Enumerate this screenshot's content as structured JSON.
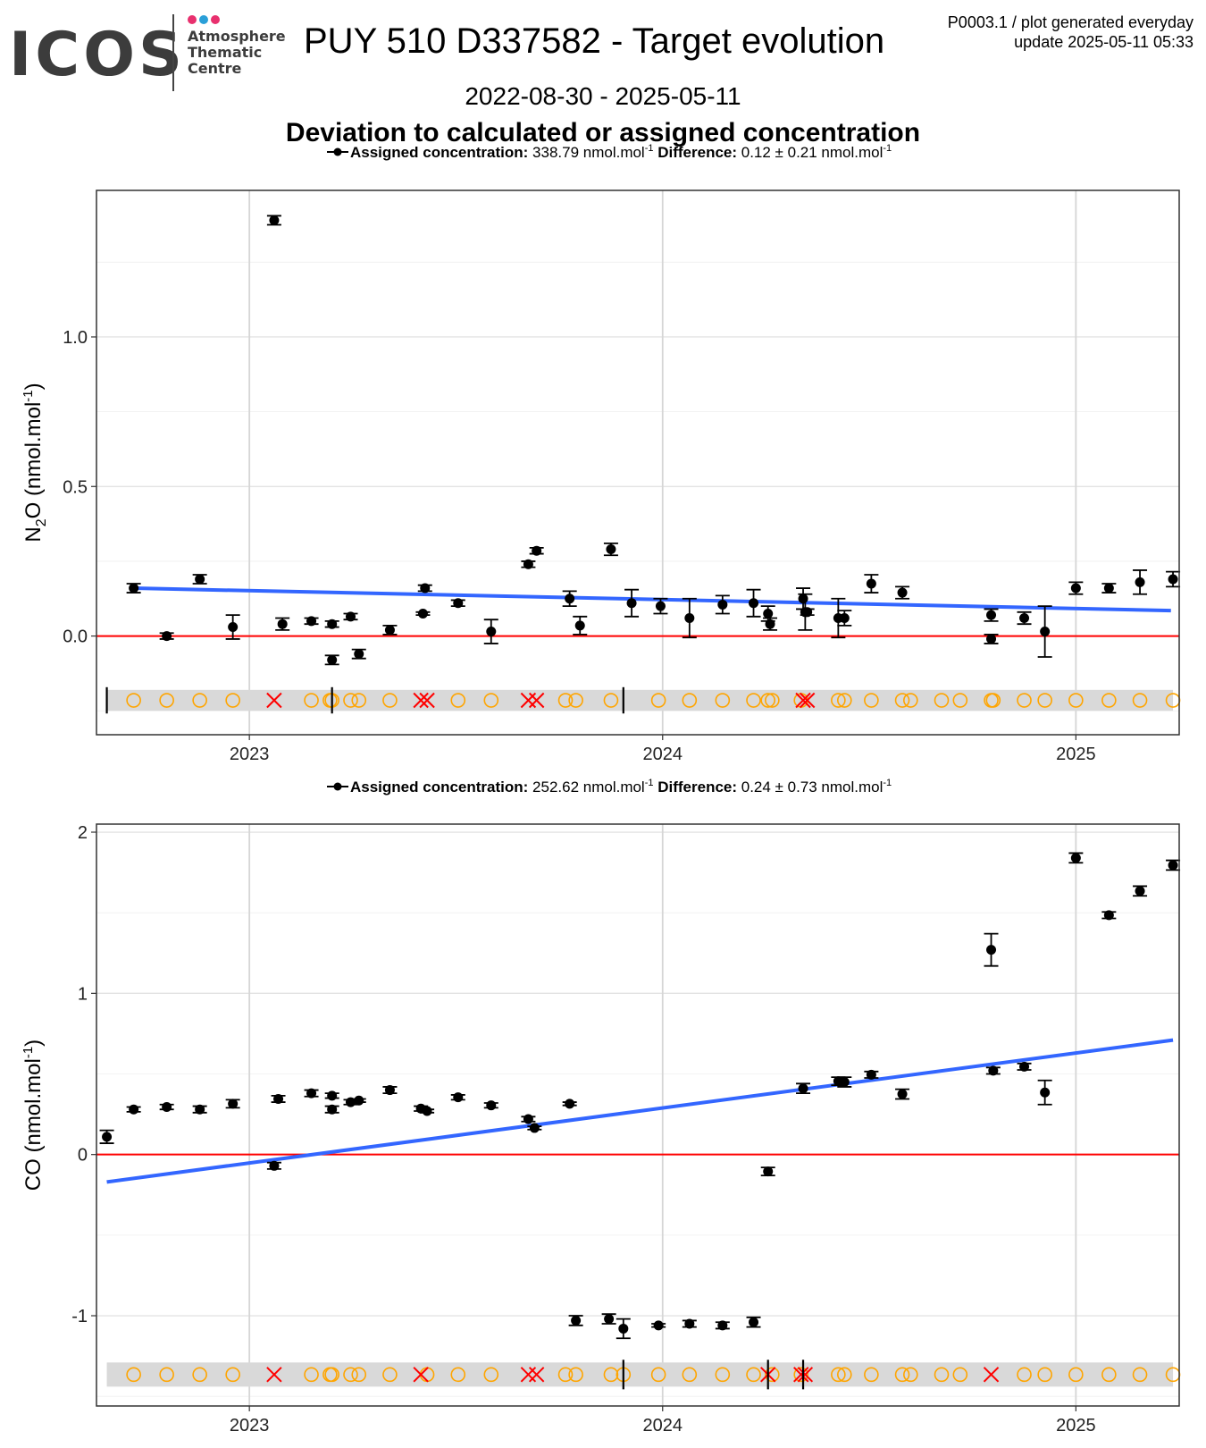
{
  "header": {
    "logo_text": "ICOS",
    "logo_sub": [
      "Atmosphere",
      "Thematic",
      "Centre"
    ],
    "logo_dot_colors": [
      "#e8306e",
      "#2a9fd8",
      "#e8306e"
    ],
    "title": "PUY 510 D337582 - Target evolution",
    "plot_id": "P0003.1 / plot generated everyday",
    "update": "update  2025-05-11 05:33",
    "date_range": "2022-08-30 - 2025-05-11",
    "subtitle": "Deviation to calculated or assigned concentration"
  },
  "colors": {
    "trend": "#3366ff",
    "zero_line": "#ff0000",
    "points": "#000000",
    "open_circle": "#ffa500",
    "cross": "#ff0000",
    "band": "#d9d9d9"
  },
  "chart_data": [
    {
      "type": "scatter",
      "species": "N2O",
      "ylabel": "N2O (nmol.mol-1)",
      "legend": {
        "assigned_label": "Assigned concentration:",
        "assigned_value": "338.79 nmol.mol",
        "difference_label": "Difference:",
        "difference_value": "0.12 ± 0.21 nmol.mol"
      },
      "xlim": [
        2022.63,
        2025.25
      ],
      "xticks": [
        2023,
        2024,
        2025
      ],
      "ylim": [
        -0.33,
        1.49
      ],
      "yticks": [
        0.0,
        0.5,
        1.0
      ],
      "grid": true,
      "trend": {
        "x": [
          2022.72,
          2025.23
        ],
        "y": [
          0.16,
          0.085
        ]
      },
      "points": [
        [
          2022.72,
          0.16,
          0.015
        ],
        [
          2022.8,
          0.0,
          0.01
        ],
        [
          2022.88,
          0.19,
          0.015
        ],
        [
          2022.96,
          0.03,
          0.04
        ],
        [
          2023.06,
          1.39,
          0.015
        ],
        [
          2023.08,
          0.04,
          0.02
        ],
        [
          2023.15,
          0.05,
          0.01
        ],
        [
          2023.2,
          0.04,
          0.01
        ],
        [
          2023.2,
          -0.08,
          0.015
        ],
        [
          2023.245,
          0.065,
          0.01
        ],
        [
          2023.265,
          -0.06,
          0.015
        ],
        [
          2023.34,
          0.02,
          0.015
        ],
        [
          2023.42,
          0.075,
          0.005
        ],
        [
          2023.425,
          0.16,
          0.01
        ],
        [
          2023.505,
          0.11,
          0.01
        ],
        [
          2023.585,
          0.015,
          0.04
        ],
        [
          2023.675,
          0.24,
          0.01
        ],
        [
          2023.695,
          0.285,
          0.01
        ],
        [
          2023.775,
          0.125,
          0.025
        ],
        [
          2023.8,
          0.035,
          0.03
        ],
        [
          2023.875,
          0.29,
          0.02
        ],
        [
          2023.925,
          0.11,
          0.045
        ],
        [
          2023.995,
          0.1,
          0.025
        ],
        [
          2024.065,
          0.06,
          0.065
        ],
        [
          2024.145,
          0.105,
          0.03
        ],
        [
          2024.22,
          0.11,
          0.045
        ],
        [
          2024.255,
          0.075,
          0.025
        ],
        [
          2024.26,
          0.04,
          0.02
        ],
        [
          2024.34,
          0.125,
          0.035
        ],
        [
          2024.345,
          0.08,
          0.06
        ],
        [
          2024.35,
          0.08,
          0.01
        ],
        [
          2024.425,
          0.06,
          0.065
        ],
        [
          2024.44,
          0.06,
          0.025
        ],
        [
          2024.505,
          0.175,
          0.03
        ],
        [
          2024.58,
          0.145,
          0.02
        ],
        [
          2024.795,
          0.07,
          0.02
        ],
        [
          2024.795,
          -0.01,
          0.015
        ],
        [
          2024.875,
          0.06,
          0.02
        ],
        [
          2024.925,
          0.015,
          0.085
        ],
        [
          2025.0,
          0.16,
          0.02
        ],
        [
          2025.08,
          0.16,
          0.015
        ],
        [
          2025.155,
          0.18,
          0.04
        ],
        [
          2025.235,
          0.19,
          0.025
        ]
      ],
      "band_y": [
        -0.18,
        -0.25
      ],
      "marker_y": -0.215,
      "circles": [
        2022.72,
        2022.8,
        2022.88,
        2022.96,
        2023.15,
        2023.195,
        2023.2,
        2023.245,
        2023.265,
        2023.34,
        2023.505,
        2023.585,
        2023.765,
        2023.79,
        2023.875,
        2023.99,
        2024.065,
        2024.145,
        2024.22,
        2024.255,
        2024.265,
        2024.335,
        2024.425,
        2024.44,
        2024.505,
        2024.58,
        2024.6,
        2024.675,
        2024.72,
        2024.795,
        2024.8,
        2024.875,
        2024.925,
        2025.0,
        2025.08,
        2025.155,
        2025.235
      ],
      "crosses": [
        2023.06,
        2023.415,
        2023.43,
        2023.675,
        2023.695,
        2024.34,
        2024.35
      ],
      "vlines": [
        2022.655,
        2023.2,
        2023.905
      ]
    },
    {
      "type": "scatter",
      "species": "CO",
      "ylabel": "CO (nmol.mol-1)",
      "legend": {
        "assigned_label": "Assigned concentration:",
        "assigned_value": "252.62 nmol.mol",
        "difference_label": "Difference:",
        "difference_value": "0.24 ± 0.73 nmol.mol"
      },
      "xlim": [
        2022.63,
        2025.25
      ],
      "xticks": [
        2023,
        2024,
        2025
      ],
      "ylim": [
        -1.56,
        2.05
      ],
      "yticks": [
        -1,
        0,
        1,
        2
      ],
      "grid": true,
      "trend": {
        "x": [
          2022.655,
          2025.235
        ],
        "y": [
          -0.17,
          0.71
        ]
      },
      "points": [
        [
          2022.655,
          0.11,
          0.04
        ],
        [
          2022.72,
          0.28,
          0.015
        ],
        [
          2022.8,
          0.295,
          0.015
        ],
        [
          2022.88,
          0.28,
          0.02
        ],
        [
          2022.96,
          0.315,
          0.025
        ],
        [
          2023.06,
          -0.07,
          0.02
        ],
        [
          2023.07,
          0.345,
          0.02
        ],
        [
          2023.15,
          0.38,
          0.02
        ],
        [
          2023.2,
          0.365,
          0.015
        ],
        [
          2023.2,
          0.28,
          0.02
        ],
        [
          2023.245,
          0.325,
          0.015
        ],
        [
          2023.265,
          0.335,
          0.01
        ],
        [
          2023.34,
          0.4,
          0.02
        ],
        [
          2023.415,
          0.285,
          0.015
        ],
        [
          2023.43,
          0.27,
          0.01
        ],
        [
          2023.505,
          0.355,
          0.015
        ],
        [
          2023.585,
          0.305,
          0.015
        ],
        [
          2023.675,
          0.22,
          0.015
        ],
        [
          2023.69,
          0.165,
          0.01
        ],
        [
          2023.775,
          0.315,
          0.01
        ],
        [
          2023.79,
          -1.03,
          0.03
        ],
        [
          2023.87,
          -1.02,
          0.03
        ],
        [
          2023.905,
          -1.08,
          0.06
        ],
        [
          2023.99,
          -1.06,
          0.01
        ],
        [
          2024.065,
          -1.05,
          0.02
        ],
        [
          2024.145,
          -1.06,
          0.02
        ],
        [
          2024.22,
          -1.04,
          0.03
        ],
        [
          2024.255,
          -0.105,
          0.025
        ],
        [
          2024.34,
          0.41,
          0.03
        ],
        [
          2024.425,
          0.455,
          0.025
        ],
        [
          2024.44,
          0.45,
          0.03
        ],
        [
          2024.505,
          0.495,
          0.02
        ],
        [
          2024.58,
          0.375,
          0.03
        ],
        [
          2024.795,
          1.27,
          0.1
        ],
        [
          2024.8,
          0.52,
          0.02
        ],
        [
          2024.875,
          0.545,
          0.02
        ],
        [
          2024.925,
          0.385,
          0.075
        ],
        [
          2025.0,
          1.84,
          0.03
        ],
        [
          2025.08,
          1.485,
          0.02
        ],
        [
          2025.155,
          1.635,
          0.03
        ],
        [
          2025.235,
          1.795,
          0.03
        ]
      ],
      "band_y": [
        -1.29,
        -1.44
      ],
      "marker_y": -1.365,
      "circles": [
        2022.72,
        2022.8,
        2022.88,
        2022.96,
        2023.15,
        2023.195,
        2023.2,
        2023.245,
        2023.265,
        2023.34,
        2023.43,
        2023.505,
        2023.585,
        2023.765,
        2023.79,
        2023.875,
        2023.905,
        2023.99,
        2024.065,
        2024.145,
        2024.22,
        2024.265,
        2024.335,
        2024.425,
        2024.44,
        2024.505,
        2024.58,
        2024.6,
        2024.675,
        2024.72,
        2024.875,
        2024.925,
        2025.0,
        2025.08,
        2025.155,
        2025.235
      ],
      "crosses": [
        2023.06,
        2023.415,
        2023.675,
        2023.695,
        2024.255,
        2024.335,
        2024.345,
        2024.795
      ],
      "vlines": [
        2023.905,
        2024.255,
        2024.34
      ]
    }
  ]
}
